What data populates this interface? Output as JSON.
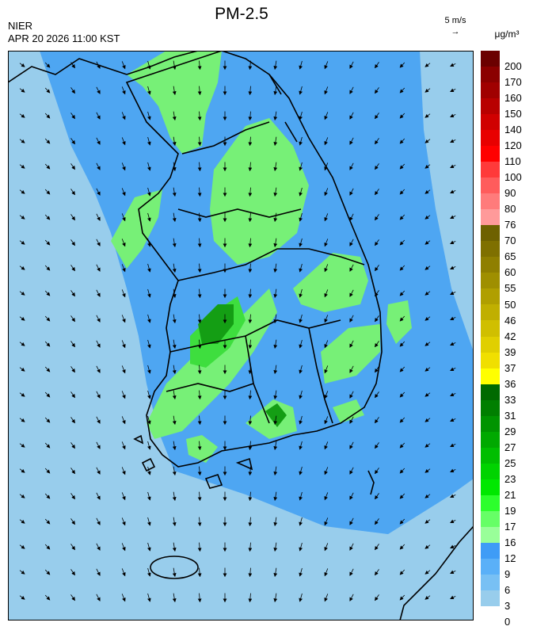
{
  "title": "PM-2.5",
  "agency": "NIER",
  "datetime": "APR 20 2026 11:00 KST",
  "wind_reference": {
    "label": "5 m/s",
    "arrow": "→"
  },
  "unit": "μg/m³",
  "legend": {
    "ticks": [
      "200",
      "170",
      "160",
      "150",
      "140",
      "120",
      "110",
      "100",
      "90",
      "80",
      "76",
      "70",
      "65",
      "60",
      "55",
      "50",
      "46",
      "42",
      "39",
      "37",
      "36",
      "33",
      "31",
      "29",
      "27",
      "25",
      "23",
      "21",
      "19",
      "17",
      "16",
      "12",
      "9",
      "6",
      "3",
      "0"
    ],
    "colors": [
      "#6b0000",
      "#8b0000",
      "#a00000",
      "#b80000",
      "#d00000",
      "#e80000",
      "#ff0000",
      "#ff3a3a",
      "#ff5c5c",
      "#ff7b7b",
      "#ff9a9a",
      "#6e6100",
      "#7f7000",
      "#8f7f00",
      "#9f8f00",
      "#b09f00",
      "#c0af00",
      "#d0bf00",
      "#e0cf00",
      "#f0df00",
      "#ffff00",
      "#006a00",
      "#007f00",
      "#009400",
      "#00a900",
      "#00be00",
      "#00d300",
      "#00e800",
      "#2cff2c",
      "#66ff66",
      "#99ff99",
      "#3f9cf6",
      "#5ab0f8",
      "#78c0f4",
      "#98cdec"
    ],
    "category_colors": {
      "good": "#98cdec",
      "moderate": "#2ed12e",
      "bad": "#e8d600",
      "very_bad": "#ff2020"
    }
  },
  "map_colors": {
    "background": "#78c0f4",
    "low": "#98cdec",
    "mid": "#4ea6f2",
    "green_light": "#77f077",
    "green": "#3ede3e",
    "green_dark": "#149e14",
    "green_deep": "#0a6e0a",
    "outline": "#000000"
  }
}
